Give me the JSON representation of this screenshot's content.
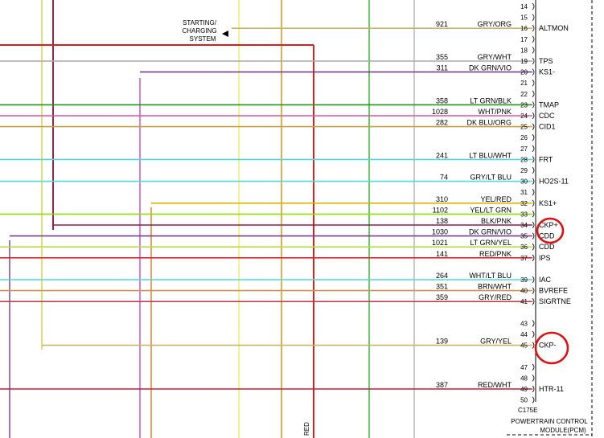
{
  "starting_charging_label": [
    "STARTING/",
    "CHARGING",
    "SYSTEM"
  ],
  "connector_label": "C175E",
  "module_label": [
    "POWERTRAIN CONTROL",
    "MODULE(PCM)"
  ],
  "vertical_wire_label": "RED",
  "empty_pins": [
    14,
    15,
    17,
    18,
    21,
    22,
    26,
    27,
    29,
    31,
    43,
    44,
    47,
    48,
    50
  ],
  "pins": [
    {
      "pin": 16,
      "circuit": "921",
      "color": "GRY/ORG",
      "func": "ALTMON",
      "wire": "#c8b464"
    },
    {
      "pin": 19,
      "circuit": "355",
      "color": "GRY/WHT",
      "func": "TPS",
      "wire": "#aaaaaa"
    },
    {
      "pin": 20,
      "circuit": "311",
      "color": "DK GRN/VIO",
      "func": "KS1-",
      "wire": "#7a3c90"
    },
    {
      "pin": 23,
      "circuit": "358",
      "color": "LT GRN/BLK",
      "func": "TMAP",
      "wire": "#1a9a1a"
    },
    {
      "pin": 24,
      "circuit": "1028",
      "color": "WHT/PNK",
      "func": "CDC",
      "wire": "#e0559a"
    },
    {
      "pin": 25,
      "circuit": "282",
      "color": "DK BLU/ORG",
      "func": "CID1",
      "wire": "#c8a040"
    },
    {
      "pin": 28,
      "circuit": "241",
      "color": "LT BLU/WHT",
      "func": "FRT",
      "wire": "#4fd8e0"
    },
    {
      "pin": 30,
      "circuit": "74",
      "color": "GRY/LT BLU",
      "func": "HO2S-11",
      "wire": "#4fd8e0"
    },
    {
      "pin": 32,
      "circuit": "310",
      "color": "YEL/RED",
      "func": "KS1+",
      "wire": "#d8b800"
    },
    {
      "pin": 33,
      "circuit": "1102",
      "color": "YEL/LT GRN",
      "func": "",
      "wire": "#8ee000"
    },
    {
      "pin": 34,
      "circuit": "138",
      "color": "BLK/PNK",
      "func": "CKP+",
      "wire": "#8b1a4a"
    },
    {
      "pin": 35,
      "circuit": "1030",
      "color": "DK GRN/VIO",
      "func": "CDD",
      "wire": "#7a3c90"
    },
    {
      "pin": 36,
      "circuit": "1021",
      "color": "LT GRN/YEL",
      "func": "CDD",
      "wire": "#b0e040"
    },
    {
      "pin": 37,
      "circuit": "141",
      "color": "RED/PNK",
      "func": "IPS",
      "wire": "#e0202a"
    },
    {
      "pin": 39,
      "circuit": "264",
      "color": "WHT/LT BLU",
      "func": "IAC",
      "wire": "#4fd8e0"
    },
    {
      "pin": 40,
      "circuit": "351",
      "color": "BRN/WHT",
      "func": "BVREFE",
      "wire": "#d89050"
    },
    {
      "pin": 41,
      "circuit": "359",
      "color": "GRY/RED",
      "func": "SIGRTNE",
      "wire": "#c04050"
    },
    {
      "pin": 45,
      "circuit": "139",
      "color": "GRY/YEL",
      "func": "CKP-",
      "wire": "#c8b464"
    },
    {
      "pin": 49,
      "circuit": "387",
      "color": "RED/WHT",
      "func": "HTR-11",
      "wire": "#c02030"
    }
  ]
}
